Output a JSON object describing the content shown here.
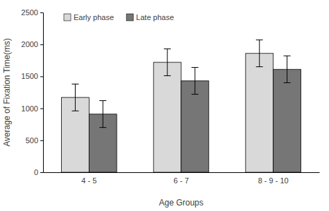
{
  "chart_data": {
    "type": "bar",
    "categories": [
      "4 - 5",
      "6 - 7",
      "8 - 9 - 10"
    ],
    "series": [
      {
        "name": "Early phase",
        "color": "#d9d9d9",
        "values": [
          1170,
          1720,
          1860
        ],
        "errors": [
          210,
          210,
          210
        ]
      },
      {
        "name": "Late phase",
        "color": "#767676",
        "values": [
          910,
          1430,
          1610
        ],
        "errors": [
          210,
          210,
          210
        ]
      }
    ],
    "x_label": "Age Groups",
    "y_label": "Average of Fixation Time(ms)",
    "ylim": [
      0,
      2500
    ],
    "yticks": [
      0,
      500,
      1000,
      1500,
      2000,
      2500
    ],
    "grid": false,
    "legend": "top-left"
  }
}
